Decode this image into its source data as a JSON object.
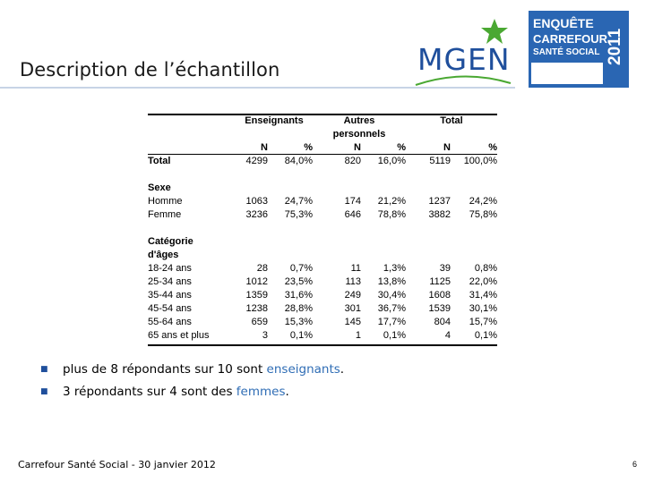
{
  "slide": {
    "title": "Description de l’échantillon",
    "footer": "Carrefour Santé Social - 30 janvier 2012",
    "page_number": "6"
  },
  "logo": {
    "text": "MGEN",
    "color": "#1f4f9c",
    "star_color": "#4aa832"
  },
  "badge": {
    "line1": "ENQUÊTE",
    "line2": "CARREFOUR",
    "line3": "SANTÉ SOCIAL",
    "year": "2011",
    "color": "#2a66b3"
  },
  "table": {
    "header": {
      "enseignants": "Enseignants",
      "autres_line1": "Autres",
      "autres_line2": "personnels",
      "total": "Total",
      "n": "N",
      "pct": "%"
    },
    "rows": [
      {
        "label": "Total",
        "bold": true,
        "v": [
          "4299",
          "84,0%",
          "820",
          "16,0%",
          "5119",
          "100,0%"
        ]
      },
      {
        "label": "",
        "v": [
          "",
          "",
          "",
          "",
          "",
          ""
        ]
      },
      {
        "label": "Sexe",
        "bold": true,
        "v": [
          "",
          "",
          "",
          "",
          "",
          ""
        ]
      },
      {
        "label": "Homme",
        "v": [
          "1063",
          "24,7%",
          "174",
          "21,2%",
          "1237",
          "24,2%"
        ]
      },
      {
        "label": "Femme",
        "v": [
          "3236",
          "75,3%",
          "646",
          "78,8%",
          "3882",
          "75,8%"
        ]
      },
      {
        "label": "",
        "v": [
          "",
          "",
          "",
          "",
          "",
          ""
        ]
      },
      {
        "label": "Catégorie",
        "bold": true,
        "v": [
          "",
          "",
          "",
          "",
          "",
          ""
        ]
      },
      {
        "label": "d'âges",
        "bold": true,
        "v": [
          "",
          "",
          "",
          "",
          "",
          ""
        ]
      },
      {
        "label": "18-24 ans",
        "v": [
          "28",
          "0,7%",
          "11",
          "1,3%",
          "39",
          "0,8%"
        ]
      },
      {
        "label": "25-34 ans",
        "v": [
          "1012",
          "23,5%",
          "113",
          "13,8%",
          "1125",
          "22,0%"
        ]
      },
      {
        "label": "35-44 ans",
        "v": [
          "1359",
          "31,6%",
          "249",
          "30,4%",
          "1608",
          "31,4%"
        ]
      },
      {
        "label": "45-54 ans",
        "v": [
          "1238",
          "28,8%",
          "301",
          "36,7%",
          "1539",
          "30,1%"
        ]
      },
      {
        "label": "55-64 ans",
        "v": [
          "659",
          "15,3%",
          "145",
          "17,7%",
          "804",
          "15,7%"
        ]
      },
      {
        "label": "65 ans et plus",
        "v": [
          "3",
          "0,1%",
          "1",
          "0,1%",
          "4",
          "0,1%"
        ]
      }
    ]
  },
  "bullets": [
    {
      "pre": "plus de 8 répondants sur 10 sont ",
      "highlight": "enseignants",
      "post": "."
    },
    {
      "pre": "3 répondants sur 4 sont des ",
      "highlight": "femmes",
      "post": "."
    }
  ],
  "colors": {
    "highlight": "#2f6db5",
    "title_rule": "#c7d4e6"
  }
}
